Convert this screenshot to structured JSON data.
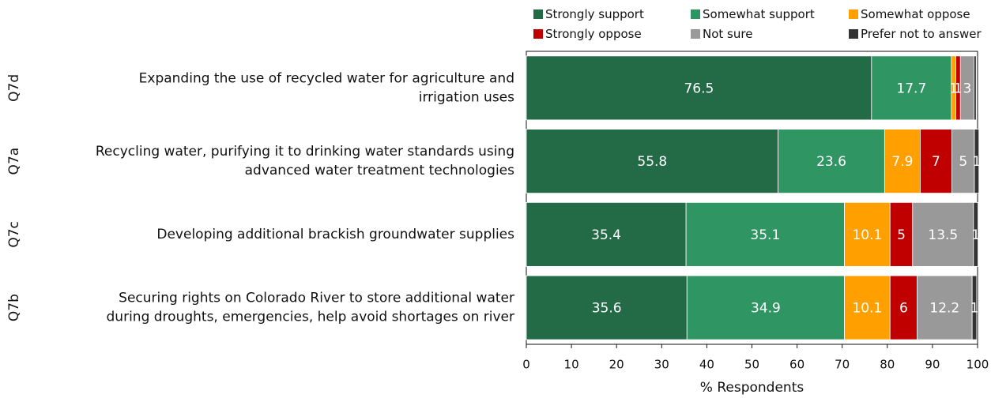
{
  "chart_data": {
    "type": "bar",
    "orientation": "horizontal",
    "stacked": true,
    "xlabel": "% Respondents",
    "xlim": [
      0,
      100
    ],
    "xticks": [
      0,
      10,
      20,
      30,
      40,
      50,
      60,
      70,
      80,
      90,
      100
    ],
    "grid": false,
    "legend_position": "top-right",
    "categories": [
      {
        "code": "Q7d",
        "label_lines": [
          "Expanding the use of recycled water for agriculture and",
          "irrigation uses"
        ]
      },
      {
        "code": "Q7a",
        "label_lines": [
          "Recycling water, purifying it to drinking water standards using",
          "advanced water treatment technologies"
        ]
      },
      {
        "code": "Q7c",
        "label_lines": [
          "Developing additional brackish groundwater supplies"
        ]
      },
      {
        "code": "Q7b",
        "label_lines": [
          "Securing rights on Colorado River to store additional water",
          "during droughts, emergencies, help avoid shortages on river"
        ]
      }
    ],
    "series": [
      {
        "name": "Strongly support",
        "color": "#236b46",
        "values": [
          76.5,
          55.8,
          35.4,
          35.6
        ],
        "labels": [
          "76.5",
          "55.8",
          "35.4",
          "35.6"
        ]
      },
      {
        "name": "Somewhat support",
        "color": "#2f9563",
        "values": [
          17.7,
          23.6,
          35.1,
          34.9
        ],
        "labels": [
          "17.7",
          "23.6",
          "35.1",
          "34.9"
        ]
      },
      {
        "name": "Somewhat oppose",
        "color": "#ff9f00",
        "values": [
          1,
          7.9,
          10.1,
          10.1
        ],
        "labels": [
          "1",
          "7.9",
          "10.1",
          "10.1"
        ]
      },
      {
        "name": "Strongly oppose",
        "color": "#c00000",
        "values": [
          1,
          7,
          5,
          6
        ],
        "labels": [
          "1",
          "7",
          "5",
          "6"
        ]
      },
      {
        "name": "Not sure",
        "color": "#999999",
        "values": [
          3,
          5,
          13.5,
          12.2
        ],
        "labels": [
          "3",
          "5",
          "13.5",
          "12.2"
        ]
      },
      {
        "name": "Prefer not to answer",
        "color": "#333333",
        "values": [
          0.5,
          1,
          1,
          1
        ],
        "labels": [
          "",
          "1",
          "1",
          "1"
        ]
      }
    ]
  }
}
